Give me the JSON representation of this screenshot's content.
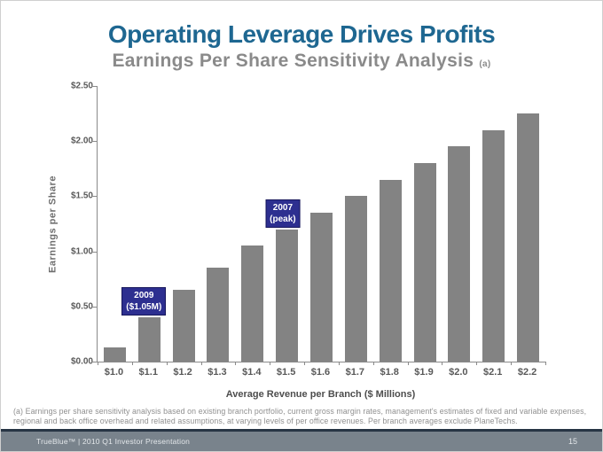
{
  "header": {
    "title": "Operating Leverage Drives Profits",
    "subtitle": "Earnings Per Share Sensitivity Analysis",
    "subtitle_superscript": "(a)"
  },
  "chart_data": {
    "type": "bar",
    "title": "Earnings Per Share Sensitivity Analysis",
    "categories": [
      "$1.0",
      "$1.1",
      "$1.2",
      "$1.3",
      "$1.4",
      "$1.5",
      "$1.6",
      "$1.7",
      "$1.8",
      "$1.9",
      "$2.0",
      "$2.1",
      "$2.2"
    ],
    "values": [
      0.13,
      0.4,
      0.65,
      0.85,
      1.05,
      1.2,
      1.35,
      1.5,
      1.65,
      1.8,
      1.95,
      2.1,
      2.25
    ],
    "xlabel": "Average Revenue per Branch ($ Millions)",
    "ylabel": "Earnings per Share",
    "ylim": [
      0,
      2.5
    ],
    "ytick_step": 0.5,
    "ytick_labels": [
      "$0.00",
      "$0.50",
      "$1.00",
      "$1.50",
      "$2.00",
      "$2.50"
    ],
    "bar_color": "#838383",
    "grid": "off",
    "legend": "none",
    "annotations": [
      {
        "bar_index": 1,
        "lines": [
          "2009",
          "($1.05M)"
        ]
      },
      {
        "bar_index": 5,
        "lines": [
          "2007",
          "(peak)"
        ]
      }
    ]
  },
  "footnote": "(a) Earnings per share sensitivity analysis based on existing branch portfolio, current gross margin rates, management's estimates of fixed and variable expenses, regional and back office overhead and related assumptions, at varying levels of per office revenues.  Per branch averages exclude PlaneTechs.",
  "footer": {
    "brand": "TrueBlue™ | 2010 Q1 Investor Presentation",
    "page_number": "15"
  },
  "colors": {
    "title": "#1e6791",
    "subtitle": "#8a8a8a",
    "bar": "#838383",
    "annotation_box": "#2d2f90",
    "footer_bar": "#79838c",
    "footer_accent": "#273544"
  }
}
